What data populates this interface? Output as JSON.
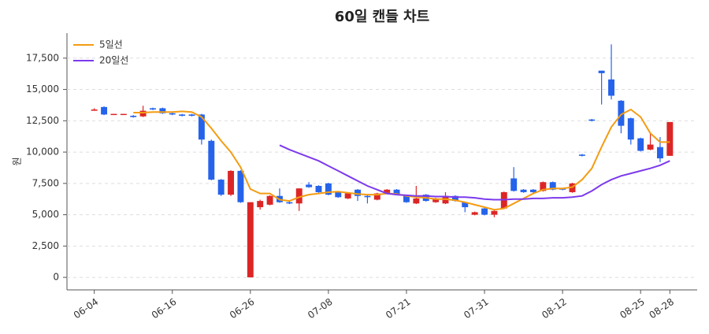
{
  "chart_data": {
    "type": "candlestick",
    "title": "60일 캔들 차트",
    "y_label": "원",
    "categories": [
      "06-04",
      null,
      null,
      null,
      null,
      null,
      null,
      null,
      "06-16",
      null,
      null,
      null,
      null,
      null,
      null,
      null,
      "06-26",
      null,
      null,
      null,
      null,
      null,
      null,
      null,
      "07-08",
      null,
      null,
      null,
      null,
      null,
      null,
      null,
      "07-21",
      null,
      null,
      null,
      null,
      null,
      null,
      null,
      "07-31",
      null,
      null,
      null,
      null,
      null,
      null,
      null,
      "08-12",
      null,
      null,
      null,
      null,
      null,
      null,
      null,
      "08-25",
      null,
      null,
      "08-28"
    ],
    "open": [
      13300,
      13600,
      13000,
      13000,
      12900,
      12850,
      13500,
      13500,
      13100,
      13000,
      13000,
      13000,
      10900,
      7800,
      6600,
      8500,
      0,
      5600,
      5800,
      6500,
      6000,
      5900,
      7400,
      7300,
      7500,
      6800,
      6300,
      7000,
      6500,
      6200,
      6700,
      7000,
      6500,
      5900,
      6600,
      6000,
      5900,
      6500,
      6000,
      5000,
      5500,
      5000,
      5500,
      7900,
      7000,
      7000,
      6900,
      7600,
      7100,
      6800,
      9800,
      12600,
      16500,
      15800,
      14100,
      12700,
      11100,
      10200,
      10400,
      9700
    ],
    "high": [
      13500,
      13650,
      13050,
      13050,
      12950,
      13700,
      13550,
      13550,
      13150,
      13050,
      13050,
      13050,
      11000,
      7850,
      8550,
      8550,
      6000,
      6200,
      6550,
      7100,
      6050,
      7100,
      7600,
      7350,
      7550,
      6850,
      6750,
      7050,
      6550,
      6750,
      7050,
      7050,
      6550,
      7300,
      6650,
      6350,
      6800,
      6550,
      6050,
      5250,
      5550,
      5350,
      6850,
      8800,
      7050,
      7050,
      7650,
      7650,
      7150,
      7550,
      9850,
      12650,
      16500,
      18600,
      14150,
      12750,
      11150,
      11500,
      11200,
      12400
    ],
    "low": [
      13300,
      12950,
      13000,
      13000,
      12750,
      12800,
      13350,
      13050,
      12950,
      12850,
      12850,
      10600,
      7750,
      6500,
      6500,
      5950,
      0,
      5400,
      5750,
      5950,
      5850,
      5300,
      7150,
      6750,
      6550,
      6350,
      6250,
      6100,
      5900,
      6150,
      6650,
      6550,
      5950,
      5850,
      6050,
      5950,
      5850,
      6050,
      5200,
      4950,
      4950,
      4800,
      5450,
      6850,
      6750,
      6750,
      6850,
      6950,
      6950,
      6750,
      9650,
      12450,
      13800,
      14200,
      11500,
      10600,
      10050,
      10150,
      9200,
      9700
    ],
    "close": [
      13400,
      13000,
      13050,
      13050,
      12800,
      13300,
      13400,
      13100,
      13000,
      12900,
      12900,
      11000,
      7800,
      6600,
      8500,
      6000,
      6000,
      6100,
      6500,
      6000,
      5900,
      7100,
      7200,
      6800,
      6600,
      6400,
      6700,
      6500,
      6400,
      6700,
      7000,
      6600,
      6000,
      6300,
      6100,
      6300,
      6500,
      6100,
      5600,
      5200,
      5000,
      5300,
      6800,
      6900,
      6800,
      6800,
      7600,
      7000,
      7000,
      7500,
      9700,
      12500,
      16300,
      14500,
      12100,
      11000,
      10100,
      10600,
      9500,
      12400
    ],
    "up_color": "#dc2626",
    "down_color": "#2563eb",
    "series": [
      {
        "name": "5일선",
        "color": "#f39c12",
        "values": [
          null,
          null,
          null,
          null,
          13150,
          13150,
          13200,
          13200,
          13200,
          13250,
          13200,
          12800,
          11900,
          10900,
          10000,
          8800,
          7050,
          6700,
          6700,
          6200,
          6100,
          6400,
          6600,
          6700,
          6800,
          6850,
          6750,
          6650,
          6600,
          6600,
          6700,
          6650,
          6500,
          6400,
          6350,
          6250,
          6250,
          6150,
          6000,
          5800,
          5600,
          5400,
          5500,
          5900,
          6300,
          6700,
          7000,
          7100,
          7100,
          7200,
          7800,
          8700,
          10400,
          12000,
          13000,
          13400,
          12800,
          11500,
          10800,
          10800
        ]
      },
      {
        "name": "20일선",
        "color": "#7c3aed",
        "values": [
          null,
          null,
          null,
          null,
          null,
          null,
          null,
          null,
          null,
          null,
          null,
          null,
          null,
          null,
          null,
          null,
          null,
          null,
          null,
          10550,
          10200,
          9900,
          9600,
          9300,
          8900,
          8500,
          8100,
          7700,
          7300,
          7000,
          6700,
          6600,
          6550,
          6500,
          6500,
          6450,
          6450,
          6400,
          6400,
          6350,
          6250,
          6200,
          6200,
          6250,
          6250,
          6300,
          6300,
          6350,
          6350,
          6400,
          6500,
          6900,
          7400,
          7800,
          8100,
          8300,
          8500,
          8700,
          8950,
          9300
        ]
      }
    ],
    "ylim": [
      -1000,
      19500
    ],
    "yticks": [
      0,
      {
        "value": 2500,
        "label": "2,500"
      },
      {
        "value": 5000,
        "label": "5,000"
      },
      {
        "value": 7500,
        "label": "7,500"
      },
      {
        "value": 10000,
        "label": "10,000"
      },
      {
        "value": 12500,
        "label": "12,500"
      },
      {
        "value": 15000,
        "label": "15,000"
      },
      {
        "value": 17500,
        "label": "17,500"
      }
    ],
    "grid": true,
    "legend": "upper left"
  }
}
